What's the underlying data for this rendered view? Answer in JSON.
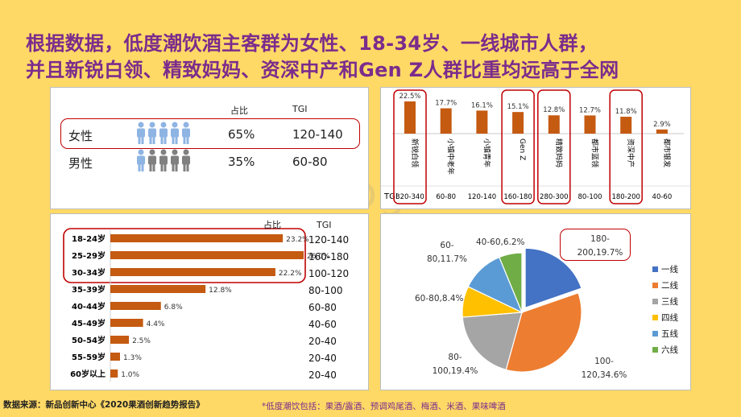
{
  "title": {
    "line1": "根据数据，低度潮饮酒主客群为女性、18-34岁、一线城市人群，",
    "line2": "并且新锐白领、精致妈妈、资深中产和Gen Z人群比重均远高于全网"
  },
  "gender_panel": {
    "col_share": "占比",
    "col_tgi": "TGI",
    "rows": [
      {
        "label": "女性",
        "share": "65%",
        "tgi": "120-140",
        "icon_color": "#8EB4E3"
      },
      {
        "label": "男性",
        "share": "35%",
        "tgi": "60-80",
        "icon_color": "#808080"
      }
    ]
  },
  "age_panel": {
    "col_share": "占比",
    "col_tgi": "TGI",
    "tgi": [
      "120-140",
      "160-180",
      "100-120",
      "80-100",
      "60-80",
      "40-60",
      "20-40",
      "20-40",
      "20-40"
    ]
  },
  "segment_panel": {
    "tgi_label": "TGI",
    "tgi": [
      "320-340",
      "60-80",
      "120-140",
      "160-180",
      "280-300",
      "80-100",
      "180-200",
      "40-60"
    ]
  },
  "pie_panel": {
    "labels": [
      {
        "line1": "180-",
        "line2": "200,19.7%"
      },
      {
        "line1": "100-",
        "line2": "120,34.6%"
      },
      {
        "line1": "80-",
        "line2": "100,19.4%"
      },
      {
        "line1": "60-80,8.4%",
        "line2": ""
      },
      {
        "line1": "60-",
        "line2": "80,11.7%"
      },
      {
        "line1": "40-60,6.2%",
        "line2": ""
      }
    ]
  },
  "footer": {
    "source": "数据来源：新品创新中心《2020果酒创新趋势报告》",
    "note": "*低度潮饮包括：果酒/露酒、预调鸡尾酒、梅酒、米酒、果味啤酒"
  },
  "watermark": "www.baogao8.com",
  "chart_data": [
    {
      "type": "table",
      "columns": [
        "",
        "占比",
        "TGI"
      ],
      "rows": [
        [
          "女性",
          "65%",
          "120-140"
        ],
        [
          "男性",
          "35%",
          "60-80"
        ]
      ]
    },
    {
      "type": "bar",
      "orientation": "horizontal",
      "categories": [
        "18-24岁",
        "25-29岁",
        "30-34岁",
        "35-39岁",
        "40-44岁",
        "45-49岁",
        "50-54岁",
        "55-59岁",
        "60岁以上"
      ],
      "values": [
        23.2,
        26.0,
        22.2,
        12.8,
        6.8,
        4.4,
        2.5,
        1.3,
        1.0
      ],
      "value_labels": [
        "23.2%",
        "26.0%",
        "22.2%",
        "12.8%",
        "6.8%",
        "4.4%",
        "2.5%",
        "1.3%",
        "1.0%"
      ],
      "xlim": [
        0,
        26
      ],
      "color": "#C55A11",
      "highlighted": [
        "18-24岁",
        "25-29岁",
        "30-34岁"
      ]
    },
    {
      "type": "bar",
      "categories": [
        "新锐白领",
        "小镇中老年",
        "小镇青年",
        "Gen Z",
        "精致妈妈",
        "都市蓝领",
        "资深中产",
        "都市银发"
      ],
      "values": [
        22.5,
        17.7,
        16.1,
        15.1,
        12.8,
        12.7,
        11.8,
        2.9
      ],
      "value_labels": [
        "22.5%",
        "17.7%",
        "16.1%",
        "15.1%",
        "12.8%",
        "12.7%",
        "11.8%",
        "2.9%"
      ],
      "ylim": [
        0,
        22.5
      ],
      "color": "#C55A11",
      "highlighted": [
        "新锐白领",
        "Gen Z",
        "精致妈妈",
        "资深中产"
      ]
    },
    {
      "type": "pie",
      "categories": [
        "一线",
        "二线",
        "三线",
        "四线",
        "五线",
        "六线"
      ],
      "values": [
        19.7,
        34.6,
        19.4,
        8.4,
        11.7,
        6.2
      ],
      "tgi": [
        "180-200",
        "100-120",
        "80-100",
        "60-80",
        "60-80",
        "40-60"
      ],
      "colors": [
        "#4472C4",
        "#ED7D31",
        "#A5A5A5",
        "#FFC000",
        "#5B9BD5",
        "#70AD47"
      ],
      "legend": "right",
      "exploded": "一线"
    }
  ]
}
